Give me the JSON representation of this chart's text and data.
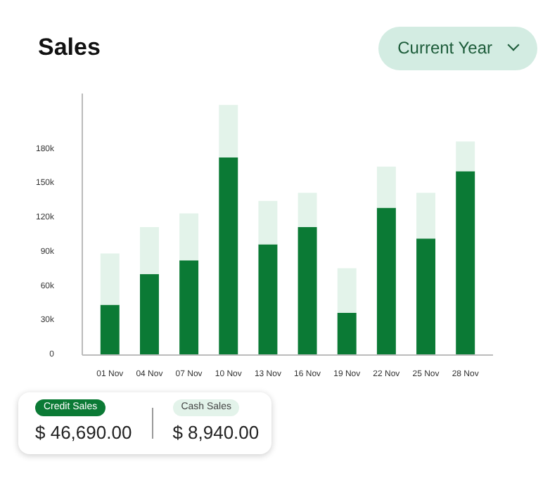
{
  "chart_data": {
    "type": "bar",
    "title": "Sales",
    "stacked": true,
    "categories": [
      "01 Nov",
      "04 Nov",
      "07 Nov",
      "10 Nov",
      "13 Nov",
      "16 Nov",
      "19 Nov",
      "22 Nov",
      "25 Nov",
      "28 Nov"
    ],
    "series": [
      {
        "name": "Credit Sales",
        "color": "#0b7a35",
        "values": [
          44000,
          71000,
          83000,
          173000,
          97000,
          112000,
          37000,
          129000,
          102000,
          161000
        ]
      },
      {
        "name": "Cash Sales",
        "color": "#e3f3ea",
        "values": [
          45000,
          41000,
          41000,
          46000,
          38000,
          30000,
          39000,
          36000,
          40000,
          26000
        ]
      }
    ],
    "ylim": [
      0,
      229000
    ],
    "yticks": [
      0,
      {
        "value": 30000,
        "label": "30k"
      },
      {
        "value": 60000,
        "label": "60k"
      },
      {
        "value": 90000,
        "label": "90k"
      },
      {
        "value": 120000,
        "label": "120k"
      },
      {
        "value": 150000,
        "label": "150k"
      },
      {
        "value": 180000,
        "label": "180k"
      }
    ],
    "grid": false,
    "legend": "bottom",
    "annotations": [
      "Current Year",
      "$ 46,690.00",
      "$ 8,940.00"
    ]
  }
}
